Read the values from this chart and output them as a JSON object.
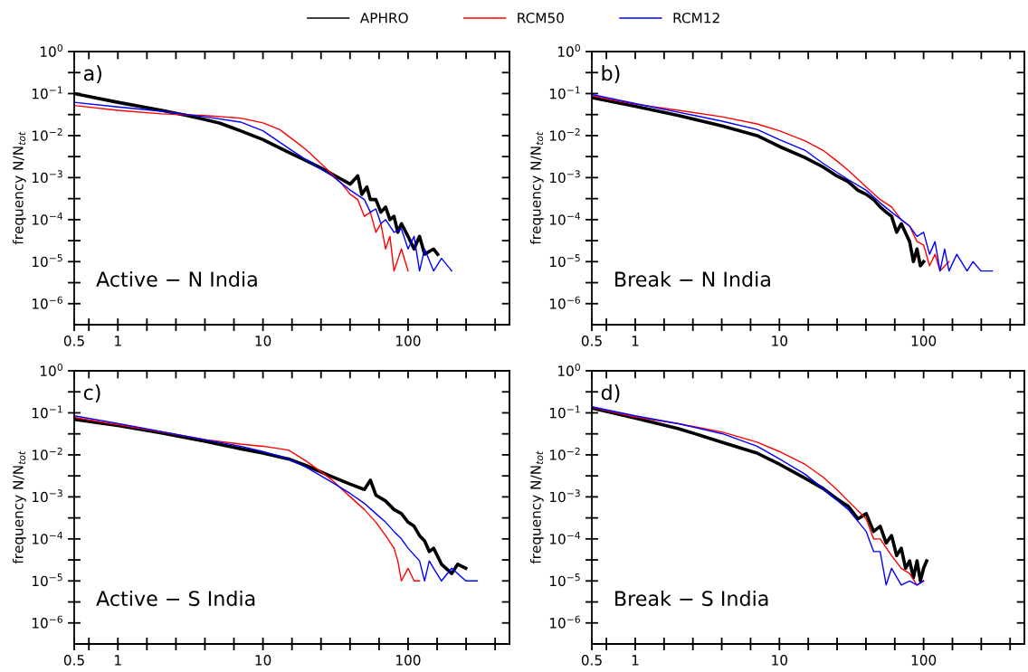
{
  "chart_data": [
    {
      "type": "line",
      "annotations": [
        "a)",
        "Active − N India"
      ],
      "ylabel": "frequency N/N$_{tot}$",
      "log": "xy",
      "legend": "top",
      "grid": false,
      "xlim": [
        0.5,
        500
      ],
      "ylim": [
        3.16e-07,
        1
      ],
      "xticks": [
        {
          "value": 0.5,
          "label": "0.5"
        },
        {
          "value": 0.631,
          "label": null
        },
        1,
        {
          "value": 1.585,
          "label": null
        },
        {
          "value": 2.512,
          "label": null
        },
        {
          "value": 3.981,
          "label": null
        },
        {
          "value": 6.31,
          "label": null
        },
        10,
        {
          "value": 15.85,
          "label": null
        },
        {
          "value": 25.12,
          "label": null
        },
        {
          "value": 39.81,
          "label": null
        },
        {
          "value": 63.1,
          "label": null
        },
        100,
        {
          "value": 158.5,
          "label": null
        },
        {
          "value": 251.2,
          "label": null
        },
        {
          "value": 398.1,
          "label": null
        }
      ],
      "yticks": [
        {
          "value": 1,
          "label": "10$^{0}$"
        },
        {
          "value": 0.316,
          "label": null
        },
        {
          "value": 0.1,
          "label": "10$^{−1}$"
        },
        {
          "value": 0.0316,
          "label": null
        },
        {
          "value": 0.01,
          "label": "10$^{−2}$"
        },
        {
          "value": 0.00316,
          "label": null
        },
        {
          "value": 0.001,
          "label": "10$^{−3}$"
        },
        {
          "value": 0.000316,
          "label": null
        },
        {
          "value": 0.0001,
          "label": "10$^{−4}$"
        },
        {
          "value": 3.16e-05,
          "label": null
        },
        {
          "value": 1e-05,
          "label": "10$^{−5}$"
        },
        {
          "value": 3.16e-06,
          "label": null
        },
        {
          "value": 1e-06,
          "label": "10$^{−6}$"
        }
      ],
      "series": [
        {
          "name": "APHRO",
          "color": "#000000",
          "x": [
            0.5,
            1,
            2,
            3,
            4,
            5,
            7,
            10,
            15,
            20,
            25,
            30,
            35,
            40,
            45,
            48,
            52,
            55,
            60,
            65,
            70,
            75,
            80,
            85,
            90,
            100,
            110,
            120,
            130,
            150,
            160
          ],
          "values": [
            0.1,
            0.062,
            0.04,
            0.03,
            0.024,
            0.02,
            0.013,
            0.008,
            0.004,
            0.0025,
            0.0017,
            0.0012,
            0.0009,
            0.0007,
            0.0011,
            0.0004,
            0.0006,
            0.0003,
            0.0003,
            0.00015,
            0.0002,
            0.0001,
            0.00012,
            5e-05,
            8e-05,
            4e-05,
            2e-05,
            4e-05,
            1.5e-05,
            2e-05,
            1.5e-05
          ]
        },
        {
          "name": "RCM50",
          "color": "#ff0000",
          "x": [
            0.5,
            1,
            2,
            4,
            7,
            10,
            13,
            17,
            20,
            25,
            30,
            35,
            40,
            45,
            50,
            55,
            60,
            65,
            70,
            75,
            80,
            90,
            100
          ],
          "values": [
            0.052,
            0.04,
            0.033,
            0.03,
            0.026,
            0.02,
            0.014,
            0.007,
            0.0045,
            0.0022,
            0.0012,
            0.0007,
            0.0004,
            0.0003,
            0.00012,
            0.00015,
            5e-05,
            8e-05,
            2e-05,
            4e-05,
            6e-06,
            2e-05,
            6e-06
          ]
        },
        {
          "name": "RCM12",
          "color": "#0000ff",
          "x": [
            0.5,
            1,
            2,
            4,
            7,
            10,
            15,
            20,
            30,
            40,
            50,
            55,
            60,
            65,
            70,
            80,
            90,
            100,
            110,
            120,
            130,
            150,
            170,
            200
          ],
          "values": [
            0.062,
            0.048,
            0.038,
            0.028,
            0.021,
            0.013,
            0.005,
            0.0026,
            0.0011,
            0.0005,
            0.0003,
            0.00015,
            0.00018,
            8e-05,
            0.0001,
            5e-05,
            6e-05,
            2e-05,
            4e-05,
            6e-06,
            2e-05,
            6e-06,
            1.2e-05,
            6e-06
          ]
        }
      ]
    },
    {
      "type": "line",
      "annotations": [
        "b)",
        "Break − N India"
      ],
      "ylabel": "frequency N/N$_{tot}$",
      "log": "xy",
      "grid": false,
      "xlim": [
        0.5,
        500
      ],
      "ylim": [
        3.16e-07,
        1
      ],
      "xticks": [
        {
          "value": 0.5,
          "label": "0.5"
        },
        {
          "value": 0.631,
          "label": null
        },
        1,
        {
          "value": 1.585,
          "label": null
        },
        {
          "value": 2.512,
          "label": null
        },
        {
          "value": 3.981,
          "label": null
        },
        {
          "value": 6.31,
          "label": null
        },
        10,
        {
          "value": 15.85,
          "label": null
        },
        {
          "value": 25.12,
          "label": null
        },
        {
          "value": 39.81,
          "label": null
        },
        {
          "value": 63.1,
          "label": null
        },
        100,
        {
          "value": 158.5,
          "label": null
        },
        {
          "value": 251.2,
          "label": null
        },
        {
          "value": 398.1,
          "label": null
        }
      ],
      "yticks": [
        {
          "value": 1,
          "label": "10$^{0}$"
        },
        {
          "value": 0.316,
          "label": null
        },
        {
          "value": 0.1,
          "label": "10$^{−1}$"
        },
        {
          "value": 0.0316,
          "label": null
        },
        {
          "value": 0.01,
          "label": "10$^{−2}$"
        },
        {
          "value": 0.00316,
          "label": null
        },
        {
          "value": 0.001,
          "label": "10$^{−3}$"
        },
        {
          "value": 0.000316,
          "label": null
        },
        {
          "value": 0.0001,
          "label": "10$^{−4}$"
        },
        {
          "value": 3.16e-05,
          "label": null
        },
        {
          "value": 1e-05,
          "label": "10$^{−5}$"
        },
        {
          "value": 3.16e-06,
          "label": null
        },
        {
          "value": 1e-06,
          "label": "10$^{−6}$"
        }
      ],
      "series": [
        {
          "color": "#000000",
          "x": [
            0.5,
            1,
            2,
            4,
            7,
            10,
            15,
            20,
            25,
            30,
            35,
            40,
            45,
            50,
            55,
            60,
            65,
            70,
            80,
            85,
            90,
            95,
            100
          ],
          "values": [
            0.08,
            0.05,
            0.03,
            0.017,
            0.01,
            0.0055,
            0.003,
            0.0018,
            0.0011,
            0.0008,
            0.0005,
            0.0004,
            0.0003,
            0.0002,
            0.00015,
            0.00012,
            5e-05,
            8e-05,
            3e-05,
            1e-05,
            2e-05,
            8e-06,
            1e-05
          ]
        },
        {
          "color": "#ff0000",
          "x": [
            0.5,
            1,
            2,
            4,
            7,
            10,
            15,
            20,
            25,
            30,
            40,
            50,
            60,
            70,
            80,
            90,
            100,
            110,
            120,
            130,
            150
          ],
          "values": [
            0.088,
            0.056,
            0.04,
            0.028,
            0.019,
            0.013,
            0.0075,
            0.0045,
            0.0025,
            0.0015,
            0.0006,
            0.0003,
            0.0002,
            0.0001,
            7e-05,
            3e-05,
            2.5e-05,
            8e-06,
            1.5e-05,
            6e-06,
            1e-05
          ]
        },
        {
          "color": "#0000ff",
          "x": [
            0.5,
            1,
            2,
            4,
            7,
            10,
            15,
            20,
            30,
            40,
            50,
            60,
            70,
            80,
            90,
            100,
            110,
            120,
            130,
            140,
            150,
            170,
            200,
            220,
            250,
            300
          ],
          "values": [
            0.095,
            0.058,
            0.036,
            0.022,
            0.014,
            0.008,
            0.0045,
            0.0022,
            0.0009,
            0.0005,
            0.00025,
            0.00015,
            0.0001,
            7e-05,
            4e-05,
            5e-05,
            1.5e-05,
            3e-05,
            6e-06,
            2e-05,
            6e-06,
            1.5e-05,
            6e-06,
            1e-05,
            6e-06,
            6e-06
          ]
        }
      ]
    },
    {
      "type": "line",
      "annotations": [
        "c)",
        "Active − S India"
      ],
      "ylabel": "frequency N/N$_{tot}$",
      "log": "xy",
      "grid": false,
      "xlim": [
        0.5,
        500
      ],
      "ylim": [
        3.16e-07,
        1
      ],
      "xticks": [
        {
          "value": 0.5,
          "label": "0.5"
        },
        {
          "value": 0.631,
          "label": null
        },
        1,
        {
          "value": 1.585,
          "label": null
        },
        {
          "value": 2.512,
          "label": null
        },
        {
          "value": 3.981,
          "label": null
        },
        {
          "value": 6.31,
          "label": null
        },
        10,
        {
          "value": 15.85,
          "label": null
        },
        {
          "value": 25.12,
          "label": null
        },
        {
          "value": 39.81,
          "label": null
        },
        {
          "value": 63.1,
          "label": null
        },
        100,
        {
          "value": 158.5,
          "label": null
        },
        {
          "value": 251.2,
          "label": null
        },
        {
          "value": 398.1,
          "label": null
        }
      ],
      "yticks": [
        {
          "value": 1,
          "label": "10$^{0}$"
        },
        {
          "value": 0.316,
          "label": null
        },
        {
          "value": 0.1,
          "label": "10$^{−1}$"
        },
        {
          "value": 0.0316,
          "label": null
        },
        {
          "value": 0.01,
          "label": "10$^{−2}$"
        },
        {
          "value": 0.00316,
          "label": null
        },
        {
          "value": 0.001,
          "label": "10$^{−3}$"
        },
        {
          "value": 0.000316,
          "label": null
        },
        {
          "value": 0.0001,
          "label": "10$^{−4}$"
        },
        {
          "value": 3.16e-05,
          "label": null
        },
        {
          "value": 1e-05,
          "label": "10$^{−5}$"
        },
        {
          "value": 3.16e-06,
          "label": null
        },
        {
          "value": 1e-06,
          "label": "10$^{−6}$"
        }
      ],
      "series": [
        {
          "color": "#000000",
          "x": [
            0.5,
            1,
            2,
            4,
            7,
            10,
            15,
            20,
            30,
            40,
            50,
            55,
            60,
            70,
            80,
            90,
            100,
            110,
            120,
            130,
            140,
            150,
            170,
            200,
            220,
            250
          ],
          "values": [
            0.07,
            0.05,
            0.033,
            0.021,
            0.014,
            0.011,
            0.008,
            0.0055,
            0.003,
            0.002,
            0.0015,
            0.0025,
            0.0011,
            0.0008,
            0.0005,
            0.0004,
            0.00025,
            0.0002,
            0.00012,
            9e-05,
            5e-05,
            6e-05,
            2.5e-05,
            1.5e-05,
            2.5e-05,
            2e-05
          ]
        },
        {
          "color": "#ff0000",
          "x": [
            0.5,
            1,
            2,
            4,
            7,
            10,
            15,
            20,
            25,
            30,
            40,
            50,
            60,
            70,
            80,
            85,
            90,
            100,
            110,
            120
          ],
          "values": [
            0.078,
            0.052,
            0.035,
            0.023,
            0.018,
            0.016,
            0.013,
            0.007,
            0.004,
            0.0025,
            0.001,
            0.0005,
            0.00025,
            0.00012,
            6e-05,
            3e-05,
            1e-05,
            2e-05,
            1e-05,
            1e-05
          ]
        },
        {
          "color": "#0000ff",
          "x": [
            0.5,
            1,
            2,
            4,
            7,
            10,
            15,
            20,
            30,
            40,
            50,
            60,
            70,
            80,
            90,
            100,
            120,
            130,
            140,
            150,
            170,
            200,
            250,
            300
          ],
          "values": [
            0.085,
            0.056,
            0.036,
            0.023,
            0.016,
            0.012,
            0.008,
            0.005,
            0.0022,
            0.0012,
            0.0007,
            0.0004,
            0.00025,
            0.00015,
            0.0001,
            6e-05,
            3e-05,
            1e-05,
            3e-05,
            2e-05,
            1e-05,
            2e-05,
            1e-05,
            1e-05
          ]
        }
      ]
    },
    {
      "type": "line",
      "annotations": [
        "d)",
        "Break − S India"
      ],
      "ylabel": "frequency N/N$_{tot}$",
      "log": "xy",
      "grid": false,
      "xlim": [
        0.5,
        500
      ],
      "ylim": [
        3.16e-07,
        1
      ],
      "xticks": [
        {
          "value": 0.5,
          "label": "0.5"
        },
        {
          "value": 0.631,
          "label": null
        },
        1,
        {
          "value": 1.585,
          "label": null
        },
        {
          "value": 2.512,
          "label": null
        },
        {
          "value": 3.981,
          "label": null
        },
        {
          "value": 6.31,
          "label": null
        },
        10,
        {
          "value": 15.85,
          "label": null
        },
        {
          "value": 25.12,
          "label": null
        },
        {
          "value": 39.81,
          "label": null
        },
        {
          "value": 63.1,
          "label": null
        },
        100,
        {
          "value": 158.5,
          "label": null
        },
        {
          "value": 251.2,
          "label": null
        },
        {
          "value": 398.1,
          "label": null
        }
      ],
      "yticks": [
        {
          "value": 1,
          "label": "10$^{0}$"
        },
        {
          "value": 0.316,
          "label": null
        },
        {
          "value": 0.1,
          "label": "10$^{−1}$"
        },
        {
          "value": 0.0316,
          "label": null
        },
        {
          "value": 0.01,
          "label": "10$^{−2}$"
        },
        {
          "value": 0.00316,
          "label": null
        },
        {
          "value": 0.001,
          "label": "10$^{−3}$"
        },
        {
          "value": 0.000316,
          "label": null
        },
        {
          "value": 0.0001,
          "label": "10$^{−4}$"
        },
        {
          "value": 3.16e-05,
          "label": null
        },
        {
          "value": 1e-05,
          "label": "10$^{−5}$"
        },
        {
          "value": 3.16e-06,
          "label": null
        },
        {
          "value": 1e-06,
          "label": "10$^{−6}$"
        }
      ],
      "series": [
        {
          "color": "#000000",
          "x": [
            0.5,
            1,
            2,
            4,
            7,
            10,
            15,
            20,
            25,
            30,
            35,
            40,
            45,
            50,
            55,
            60,
            65,
            70,
            75,
            80,
            85,
            90,
            95,
            100,
            105
          ],
          "values": [
            0.13,
            0.075,
            0.042,
            0.02,
            0.011,
            0.006,
            0.0028,
            0.0016,
            0.0009,
            0.0006,
            0.0003,
            0.0004,
            0.00015,
            0.0002,
            8e-05,
            0.00012,
            4e-05,
            6e-05,
            2e-05,
            3e-05,
            1.2e-05,
            3e-05,
            1e-05,
            2e-05,
            3e-05
          ]
        },
        {
          "color": "#ff0000",
          "x": [
            0.5,
            1,
            2,
            4,
            7,
            10,
            15,
            20,
            25,
            30,
            40,
            45,
            50,
            60,
            70,
            80,
            90,
            100
          ],
          "values": [
            0.135,
            0.08,
            0.055,
            0.035,
            0.02,
            0.012,
            0.006,
            0.003,
            0.0015,
            0.0008,
            0.0003,
            0.0001,
            0.0001,
            4e-05,
            2e-05,
            1.5e-05,
            8e-06,
            1e-05
          ]
        },
        {
          "color": "#0000ff",
          "x": [
            0.5,
            1,
            2,
            4,
            7,
            10,
            15,
            20,
            30,
            40,
            45,
            50,
            55,
            60,
            70,
            80,
            90,
            100
          ],
          "values": [
            0.14,
            0.085,
            0.055,
            0.032,
            0.016,
            0.008,
            0.0035,
            0.0016,
            0.0005,
            0.00015,
            5e-05,
            5e-05,
            8e-06,
            2e-05,
            8e-06,
            1e-05,
            8e-06,
            1e-05
          ]
        }
      ]
    }
  ]
}
